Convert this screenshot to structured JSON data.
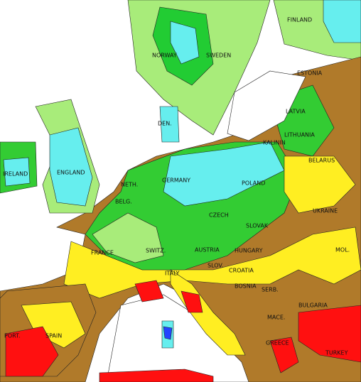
{
  "labels": [
    "FINLAND",
    "NORWAY",
    "SWEDEN",
    "ESTONIA",
    "LATVIA",
    "LITHUANIA",
    "KALININ",
    "DEN.",
    "IRELAND",
    "ENGLAND",
    "NETH.",
    "BELG.",
    "GERMANY",
    "POLAND",
    "BELARUS",
    "CZECH",
    "SLOVAK",
    "UKRAINE",
    "FRANCE",
    "SWITZ.",
    "AUSTRIA",
    "HUNGARY",
    "MOL.",
    "SLOV.",
    "CROATIA",
    "ITALY",
    "BOSNIA",
    "SERB.",
    "BULGARIA",
    "MACE.",
    "GREECE",
    "PORT.",
    "SPAIN",
    "TURKEY"
  ]
}
